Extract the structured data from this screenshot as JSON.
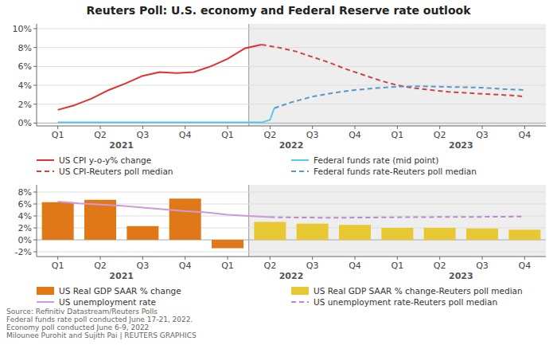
{
  "chart_data": [
    {
      "type": "line",
      "title": "Reuters Poll: U.S. economy and Federal Reserve rate outlook",
      "xlim": [
        -0.5,
        11.5
      ],
      "xticks": [
        {
          "value": 0,
          "label": "Q1"
        },
        {
          "value": 1,
          "label": "Q2"
        },
        {
          "value": 2,
          "label": "Q3"
        },
        {
          "value": 3,
          "label": "Q4"
        },
        {
          "value": 4,
          "label": "Q1"
        },
        {
          "value": 5,
          "label": "Q2"
        },
        {
          "value": 6,
          "label": "Q3"
        },
        {
          "value": 7,
          "label": "Q4"
        },
        {
          "value": 8,
          "label": "Q1"
        },
        {
          "value": 9,
          "label": "Q2"
        },
        {
          "value": 10,
          "label": "Q3"
        },
        {
          "value": 11,
          "label": "Q4"
        }
      ],
      "ylim": [
        -0.3,
        10.5
      ],
      "yticks": [
        {
          "value": 0,
          "label": "0%"
        },
        {
          "value": 2,
          "label": "2%"
        },
        {
          "value": 4,
          "label": "4%"
        },
        {
          "value": 6,
          "label": "6%"
        },
        {
          "value": 8,
          "label": "8%"
        },
        {
          "value": 10,
          "label": "10%"
        }
      ],
      "grid": true,
      "legend": "bottom",
      "annotations": [
        {
          "type": "span",
          "x": [
            4.5,
            11.5
          ]
        },
        {
          "text": "2021",
          "x": 1.5
        },
        {
          "text": "2022",
          "x": 5.5
        },
        {
          "text": "2023",
          "x": 9.5
        }
      ],
      "series": [
        {
          "name": "US CPI y-o-y% change",
          "color": "#e03030",
          "line_style": "solid",
          "x": [
            0,
            0.4,
            0.8,
            1.2,
            1.6,
            2.0,
            2.4,
            2.8,
            3.2,
            3.6,
            4.0,
            4.4,
            4.8
          ],
          "values": [
            1.4,
            1.9,
            2.6,
            3.5,
            4.2,
            5.0,
            5.4,
            5.3,
            5.4,
            6.0,
            6.8,
            7.9,
            8.3
          ]
        },
        {
          "name": "Federal funds rate (mid point)",
          "color": "#55ccee",
          "line_style": "solid",
          "x": [
            0,
            0.5,
            1.0,
            1.5,
            2.0,
            2.5,
            3.0,
            3.5,
            4.0,
            4.5,
            4.7,
            4.8,
            5.0,
            5.1
          ],
          "values": [
            0.07,
            0.07,
            0.07,
            0.07,
            0.07,
            0.07,
            0.07,
            0.07,
            0.07,
            0.07,
            0.07,
            0.07,
            0.33,
            1.58
          ]
        },
        {
          "name": "US CPI-Reuters poll median",
          "color": "#cc4444",
          "line_style": "dashed",
          "x": [
            4.8,
            5.2,
            5.6,
            6.0,
            6.4,
            6.8,
            7.2,
            7.6,
            8.0,
            8.4,
            8.8,
            9.2,
            9.6,
            10.0,
            10.4,
            10.8,
            11.0
          ],
          "values": [
            8.3,
            8.0,
            7.6,
            7.0,
            6.4,
            5.7,
            5.1,
            4.5,
            4.0,
            3.7,
            3.5,
            3.3,
            3.2,
            3.1,
            3.0,
            2.9,
            2.8
          ]
        },
        {
          "name": "Federal funds rate-Reuters poll median",
          "color": "#5599cc",
          "line_style": "dashed",
          "x": [
            5.1,
            5.5,
            6.0,
            6.5,
            7.0,
            7.5,
            8.0,
            8.5,
            9.0,
            9.5,
            10.0,
            10.5,
            11.0
          ],
          "values": [
            1.58,
            2.2,
            2.8,
            3.2,
            3.5,
            3.7,
            3.85,
            3.9,
            3.85,
            3.8,
            3.75,
            3.6,
            3.5
          ]
        }
      ]
    },
    {
      "type": "bar",
      "xlim": [
        -0.5,
        11.5
      ],
      "xticks": [
        {
          "value": 0,
          "label": "Q1"
        },
        {
          "value": 1,
          "label": "Q2"
        },
        {
          "value": 2,
          "label": "Q3"
        },
        {
          "value": 3,
          "label": "Q4"
        },
        {
          "value": 4,
          "label": "Q1"
        },
        {
          "value": 5,
          "label": "Q2"
        },
        {
          "value": 6,
          "label": "Q3"
        },
        {
          "value": 7,
          "label": "Q4"
        },
        {
          "value": 8,
          "label": "Q1"
        },
        {
          "value": 9,
          "label": "Q2"
        },
        {
          "value": 10,
          "label": "Q3"
        },
        {
          "value": 11,
          "label": "Q4"
        }
      ],
      "ylim": [
        -2.8,
        9.2
      ],
      "yticks": [
        {
          "value": -2,
          "label": "-2%"
        },
        {
          "value": 0,
          "label": "0%"
        },
        {
          "value": 2,
          "label": "2%"
        },
        {
          "value": 4,
          "label": "4%"
        },
        {
          "value": 6,
          "label": "6%"
        },
        {
          "value": 8,
          "label": "8%"
        }
      ],
      "grid": true,
      "legend": "bottom",
      "annotations": [
        {
          "type": "span",
          "x": [
            4.5,
            11.5
          ]
        },
        {
          "text": "2021",
          "x": 1.5
        },
        {
          "text": "2022",
          "x": 5.5
        },
        {
          "text": "2023",
          "x": 9.5
        },
        {
          "type": "note",
          "text": "Source: Refinitiv Datastream/Reuters Polls\nFederal funds rate poll conducted June 17-21, 2022.\nEconomy poll conducted June 6-9, 2022\nMilounee Purohit and Sujith Pai | REUTERS GRAPHICS"
        }
      ],
      "series": [
        {
          "name": "US Real GDP SAAR % change",
          "type": "bar",
          "color": "#e07818",
          "x": [
            0,
            1,
            2,
            3,
            4
          ],
          "values": [
            6.3,
            6.7,
            2.3,
            6.9,
            -1.4
          ]
        },
        {
          "name": "US Real GDP SAAR % change-Reuters poll median",
          "type": "bar",
          "color": "#e8c832",
          "x": [
            5,
            6,
            7,
            8,
            9,
            10,
            11
          ],
          "values": [
            3.0,
            2.7,
            2.5,
            2.0,
            2.0,
            1.9,
            1.7
          ]
        },
        {
          "name": "US unemployment rate",
          "type": "line",
          "color": "#cc99dd",
          "line_style": "solid",
          "x": [
            0,
            0.5,
            1.0,
            1.5,
            2.0,
            2.5,
            3.0,
            3.5,
            4.0,
            4.5,
            5.0
          ],
          "values": [
            6.4,
            6.1,
            5.9,
            5.7,
            5.4,
            5.1,
            4.8,
            4.6,
            4.2,
            4.0,
            3.8
          ]
        },
        {
          "name": "US unemployment rate-Reuters poll median",
          "type": "line",
          "color": "#bb88cc",
          "line_style": "dashed",
          "x": [
            5.0,
            5.5,
            6.0,
            6.5,
            7.0,
            7.5,
            8.0,
            8.5,
            9.0,
            9.5,
            10.0,
            10.5,
            11.0
          ],
          "values": [
            3.8,
            3.75,
            3.72,
            3.7,
            3.72,
            3.75,
            3.78,
            3.8,
            3.82,
            3.84,
            3.85,
            3.87,
            3.9
          ]
        }
      ]
    }
  ]
}
